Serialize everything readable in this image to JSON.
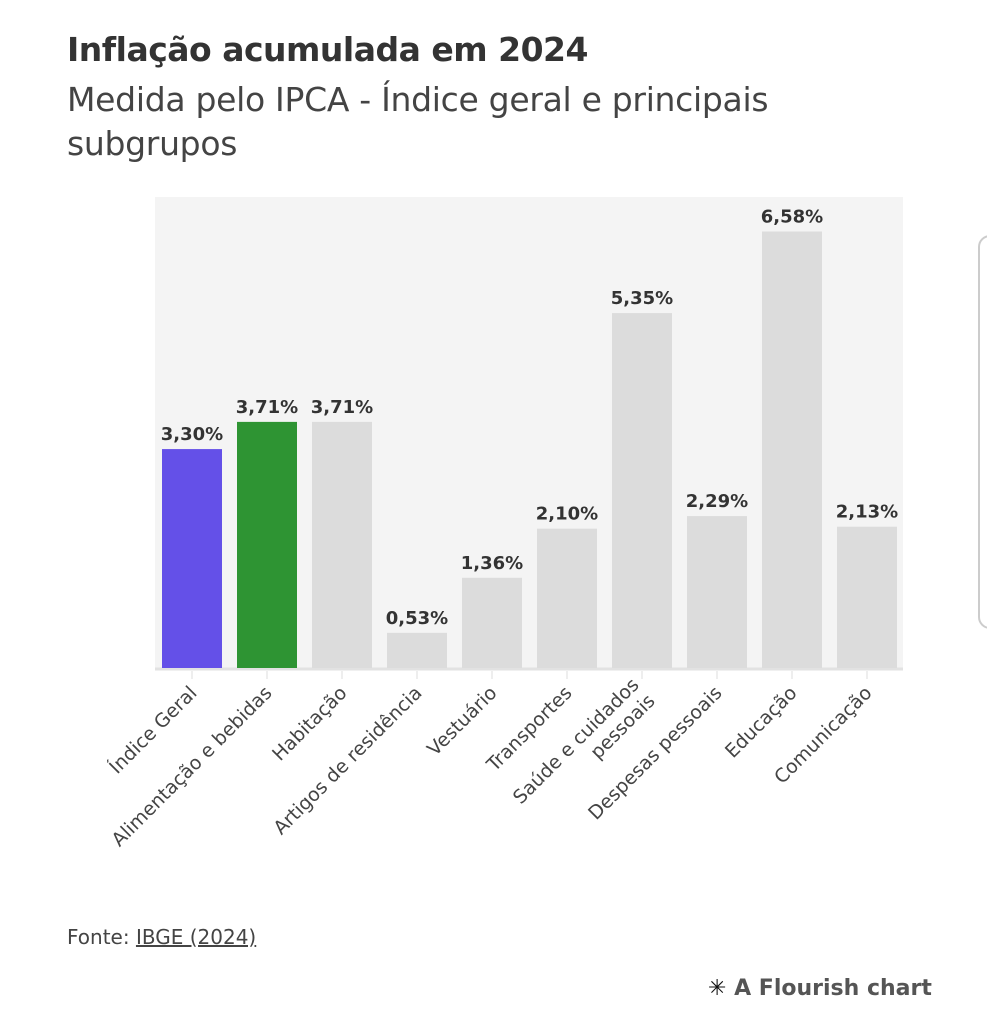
{
  "header": {
    "title": "Inflação acumulada em 2024",
    "subtitle": "Medida pelo IPCA - Índice geral e principais subgrupos"
  },
  "chart_data": {
    "type": "bar",
    "categories": [
      "Índice Geral",
      "Alimentação e bebidas",
      "Habitação",
      "Artigos de residência",
      "Vestuário",
      "Transportes",
      "Saúde e cuidados pessoais",
      "Despesas pessoais",
      "Educação",
      "Comunicação"
    ],
    "values": [
      3.3,
      3.71,
      3.71,
      0.53,
      1.36,
      2.1,
      5.35,
      2.29,
      6.58,
      2.13
    ],
    "data_labels": [
      "3,30%",
      "3,71%",
      "3,71%",
      "0,53%",
      "1,36%",
      "2,10%",
      "5,35%",
      "2,29%",
      "6,58%",
      "2,13%"
    ],
    "colors": [
      "#6450e8",
      "#2e9433",
      "#dcdcdc",
      "#dcdcdc",
      "#dcdcdc",
      "#dcdcdc",
      "#dcdcdc",
      "#dcdcdc",
      "#dcdcdc",
      "#dcdcdc"
    ],
    "ylim": [
      0,
      7.1
    ],
    "grid": false,
    "plot_background": "#f4f4f4"
  },
  "footer": {
    "source_prefix": "Fonte: ",
    "source_link": "IBGE (2024)",
    "flourish_label": "A Flourish chart"
  }
}
